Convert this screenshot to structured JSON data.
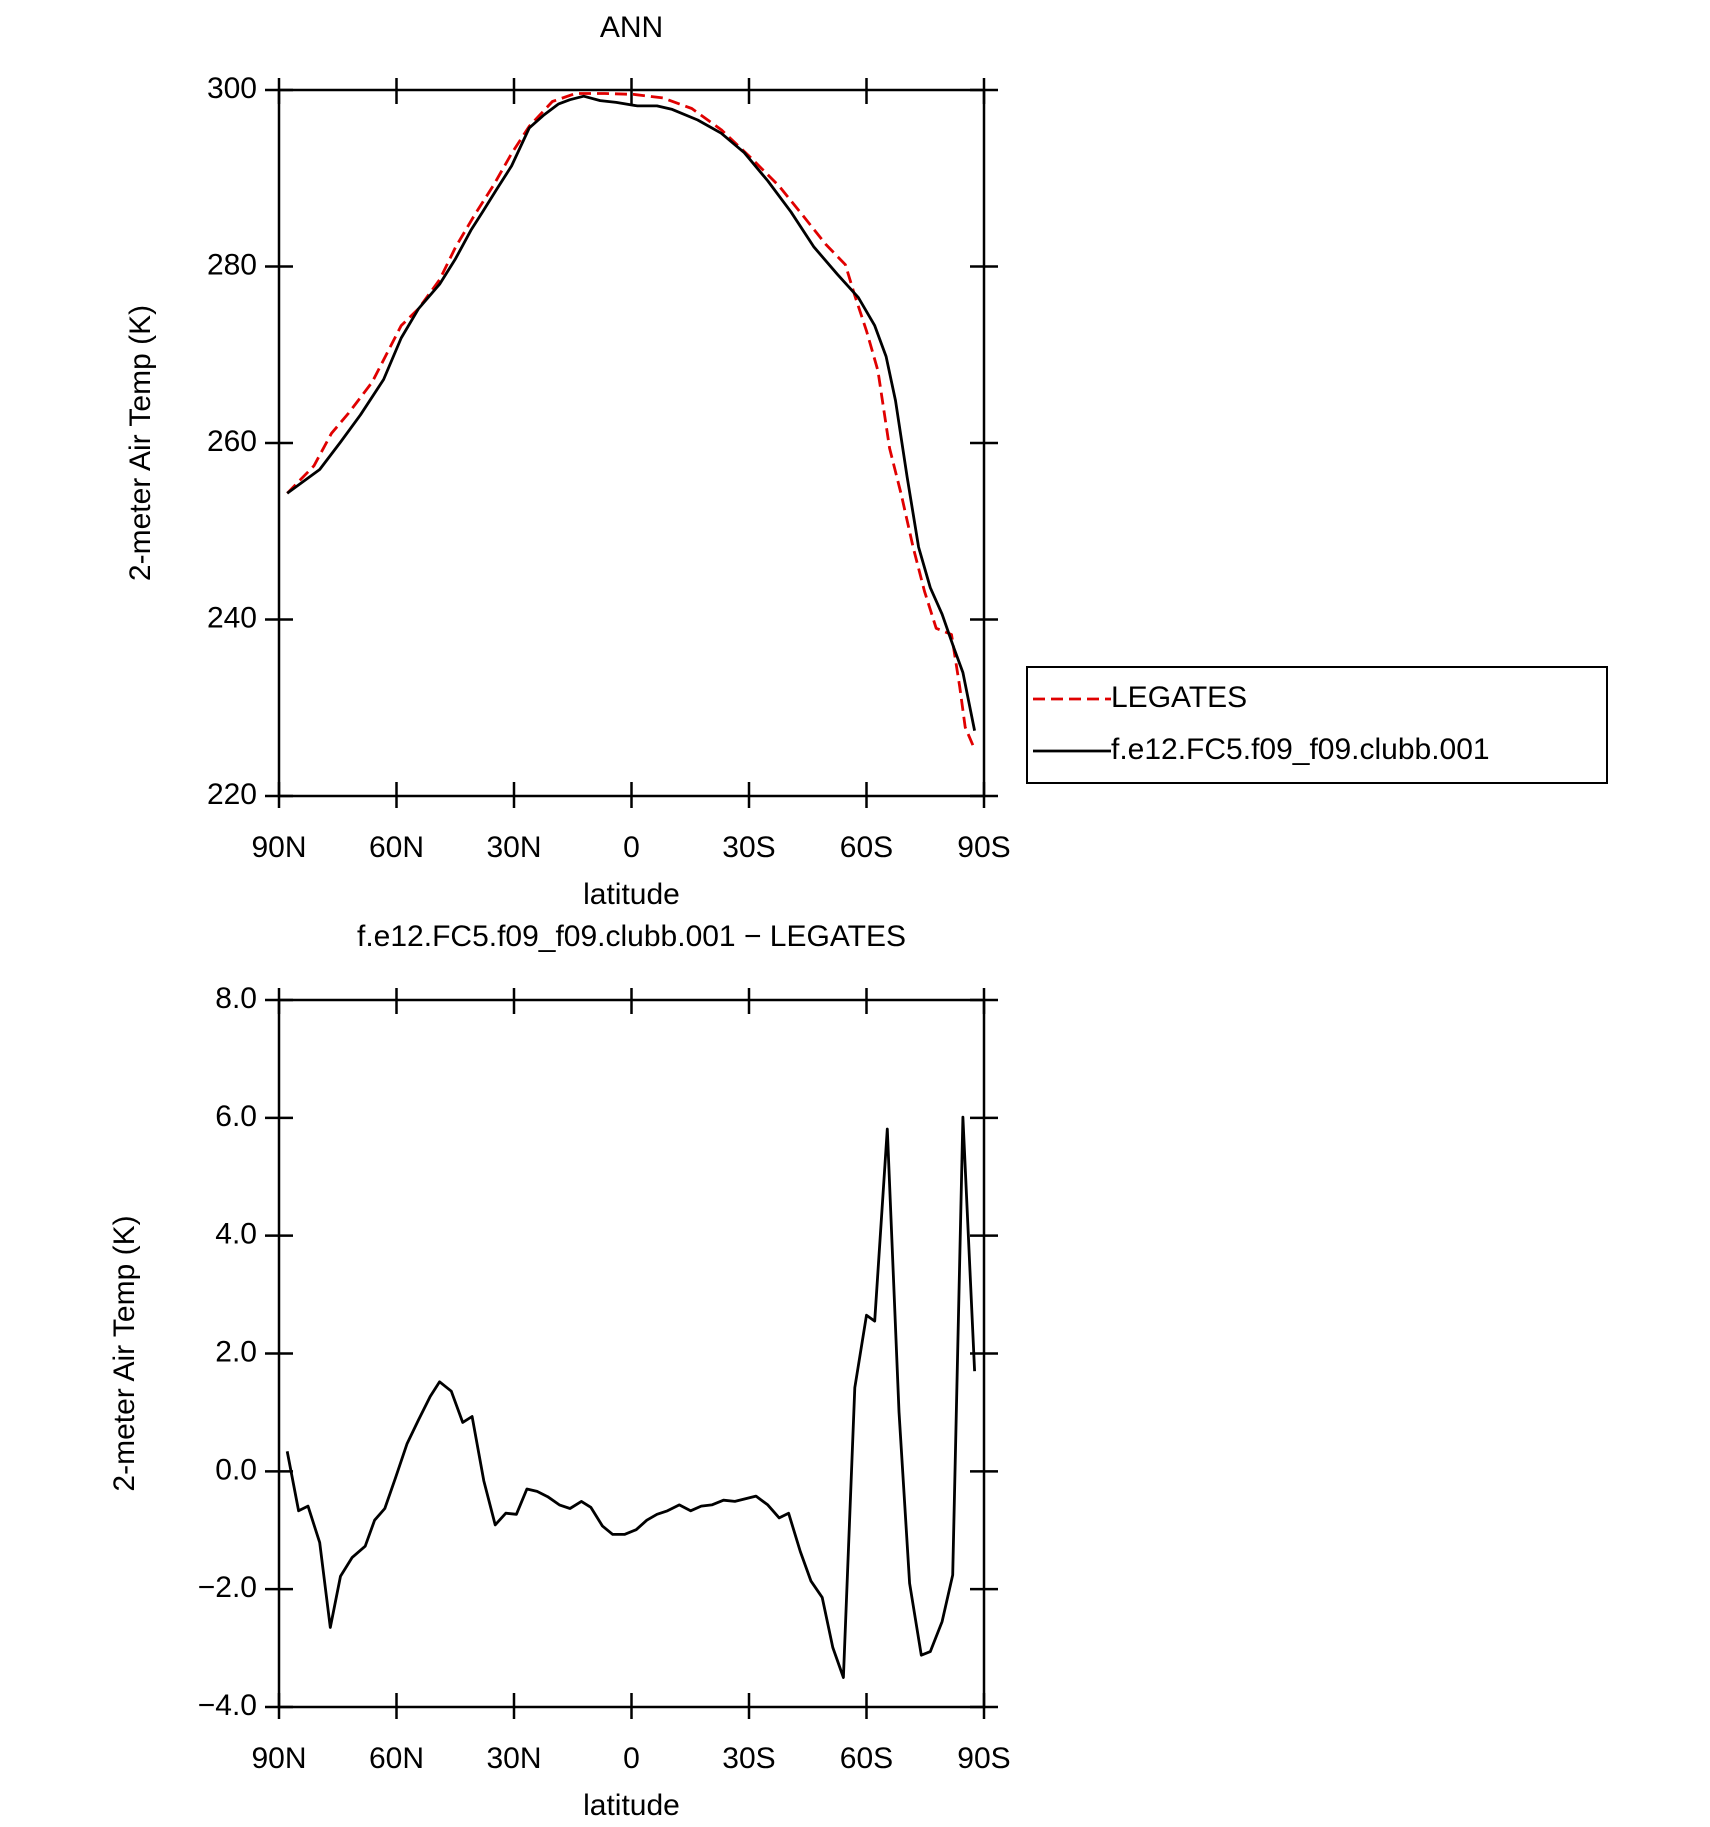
{
  "chart_data": [
    {
      "type": "line",
      "title": "ANN",
      "x_label": "latitude",
      "y_label": "2-meter Air Temp (K)",
      "xlim": [
        90,
        -90
      ],
      "ylim": [
        220,
        300
      ],
      "xticks": [
        {
          "value": 90,
          "label": "90N"
        },
        {
          "value": 60,
          "label": "60N"
        },
        {
          "value": 30,
          "label": "30N"
        },
        0,
        {
          "value": -30,
          "label": "30S"
        },
        {
          "value": -60,
          "label": "60S"
        },
        {
          "value": -90,
          "label": "90S"
        }
      ],
      "yticks": [
        220,
        240,
        260,
        280,
        300
      ],
      "legend": "right",
      "series": [
        {
          "name": "LEGATES",
          "color": "#e00000",
          "style": "dashed",
          "x": [
            87.9,
            81.1,
            76.6,
            72.2,
            66.2,
            58.8,
            54.4,
            49.0,
            44.9,
            40.1,
            35.1,
            30.6,
            26.1,
            20.2,
            14.3,
            6.8,
            -0.6,
            -8.0,
            -15.4,
            -22.9,
            -30.3,
            -37.7,
            -43.7,
            -49.6,
            -54.6,
            -57.0,
            -60.0,
            -62.9,
            -65.9,
            -68.9,
            -71.9,
            -74.8,
            -77.8,
            -81.7,
            -83.8,
            -85.2,
            -87.6
          ],
          "values": [
            254.3,
            257.4,
            261.1,
            263.4,
            266.9,
            273.3,
            275.2,
            278.5,
            282.2,
            285.8,
            289.3,
            292.8,
            295.9,
            298.7,
            299.6,
            299.6,
            299.5,
            299.1,
            297.9,
            295.5,
            292.4,
            289.1,
            285.8,
            282.5,
            280.2,
            276.7,
            272.7,
            268.2,
            259.4,
            254.1,
            248.2,
            243.2,
            239.0,
            238.3,
            232.4,
            227.8,
            225.3
          ]
        },
        {
          "name": "f.e12.FC5.f09_f09.clubb.001",
          "color": "#000000",
          "style": "solid",
          "x": [
            87.9,
            79.6,
            74.3,
            69.2,
            63.3,
            58.8,
            54.4,
            49.0,
            44.9,
            41.0,
            38.0,
            34.5,
            30.6,
            26.1,
            22.3,
            18.7,
            15.7,
            12.2,
            8.0,
            3.9,
            -1.5,
            -6.5,
            -10.4,
            -16.9,
            -22.9,
            -28.8,
            -34.8,
            -40.7,
            -46.6,
            -52.6,
            -57.9,
            -62.1,
            -65.0,
            -67.4,
            -70.4,
            -73.3,
            -76.3,
            -79.3,
            -82.3,
            -84.6,
            -87.6
          ],
          "values": [
            254.3,
            257.0,
            260.1,
            263.2,
            267.2,
            271.9,
            275.2,
            278.0,
            280.9,
            284.1,
            286.2,
            288.7,
            291.4,
            295.7,
            297.2,
            298.4,
            298.9,
            299.3,
            298.8,
            298.6,
            298.2,
            298.2,
            297.8,
            296.6,
            295.1,
            292.9,
            289.7,
            286.2,
            282.2,
            279.1,
            276.5,
            273.3,
            269.8,
            264.8,
            256.1,
            248.2,
            243.6,
            240.6,
            236.8,
            234.0,
            227.4
          ]
        }
      ]
    },
    {
      "type": "line",
      "title": "f.e12.FC5.f09_f09.clubb.001 − LEGATES",
      "x_label": "latitude",
      "y_label": "2-meter Air Temp (K)",
      "xlim": [
        90,
        -90
      ],
      "ylim": [
        -4,
        8
      ],
      "xticks": [
        {
          "value": 90,
          "label": "90N"
        },
        {
          "value": 60,
          "label": "60N"
        },
        {
          "value": 30,
          "label": "30N"
        },
        0,
        {
          "value": -30,
          "label": "30S"
        },
        {
          "value": -60,
          "label": "60S"
        },
        {
          "value": -90,
          "label": "90S"
        }
      ],
      "yticks": [
        {
          "value": -4,
          "label": "−4.0"
        },
        {
          "value": -2,
          "label": "−2.0"
        },
        {
          "value": 0,
          "label": "0.0"
        },
        {
          "value": 2,
          "label": "2.0"
        },
        {
          "value": 4,
          "label": "4.0"
        },
        {
          "value": 6,
          "label": "6.0"
        },
        {
          "value": 8,
          "label": "8.0"
        }
      ],
      "series": [
        {
          "color": "#000000",
          "style": "solid",
          "x": [
            87.9,
            85.0,
            82.6,
            79.6,
            76.9,
            74.3,
            71.3,
            68.0,
            65.6,
            63.0,
            60.3,
            57.3,
            54.4,
            51.4,
            49.0,
            46.0,
            43.1,
            40.7,
            37.7,
            34.8,
            32.1,
            29.4,
            26.7,
            24.1,
            21.4,
            18.4,
            15.7,
            12.8,
            10.4,
            7.4,
            4.8,
            1.8,
            -1.2,
            -3.9,
            -6.5,
            -9.2,
            -12.2,
            -15.1,
            -17.8,
            -20.5,
            -23.5,
            -26.4,
            -31.8,
            -34.8,
            -37.7,
            -40.1,
            -43.1,
            -45.8,
            -48.7,
            -51.4,
            -54.1,
            -57.0,
            -60.0,
            -62.1,
            -65.3,
            -68.3,
            -71.0,
            -74.0,
            -76.3,
            -79.3,
            -82.0,
            -84.6,
            -87.6
          ],
          "values": [
            0.34,
            -0.67,
            -0.59,
            -1.21,
            -2.65,
            -1.78,
            -1.46,
            -1.27,
            -0.83,
            -0.63,
            -0.12,
            0.47,
            0.87,
            1.27,
            1.52,
            1.36,
            0.83,
            0.93,
            -0.16,
            -0.91,
            -0.71,
            -0.73,
            -0.3,
            -0.34,
            -0.43,
            -0.57,
            -0.63,
            -0.51,
            -0.61,
            -0.93,
            -1.07,
            -1.07,
            -0.99,
            -0.83,
            -0.73,
            -0.67,
            -0.57,
            -0.67,
            -0.59,
            -0.57,
            -0.49,
            -0.51,
            -0.42,
            -0.57,
            -0.79,
            -0.71,
            -1.36,
            -1.86,
            -2.14,
            -2.99,
            -3.5,
            1.42,
            2.65,
            2.55,
            5.81,
            1.01,
            -1.9,
            -3.12,
            -3.06,
            -2.55,
            -1.76,
            6.01,
            1.7
          ]
        }
      ]
    }
  ]
}
